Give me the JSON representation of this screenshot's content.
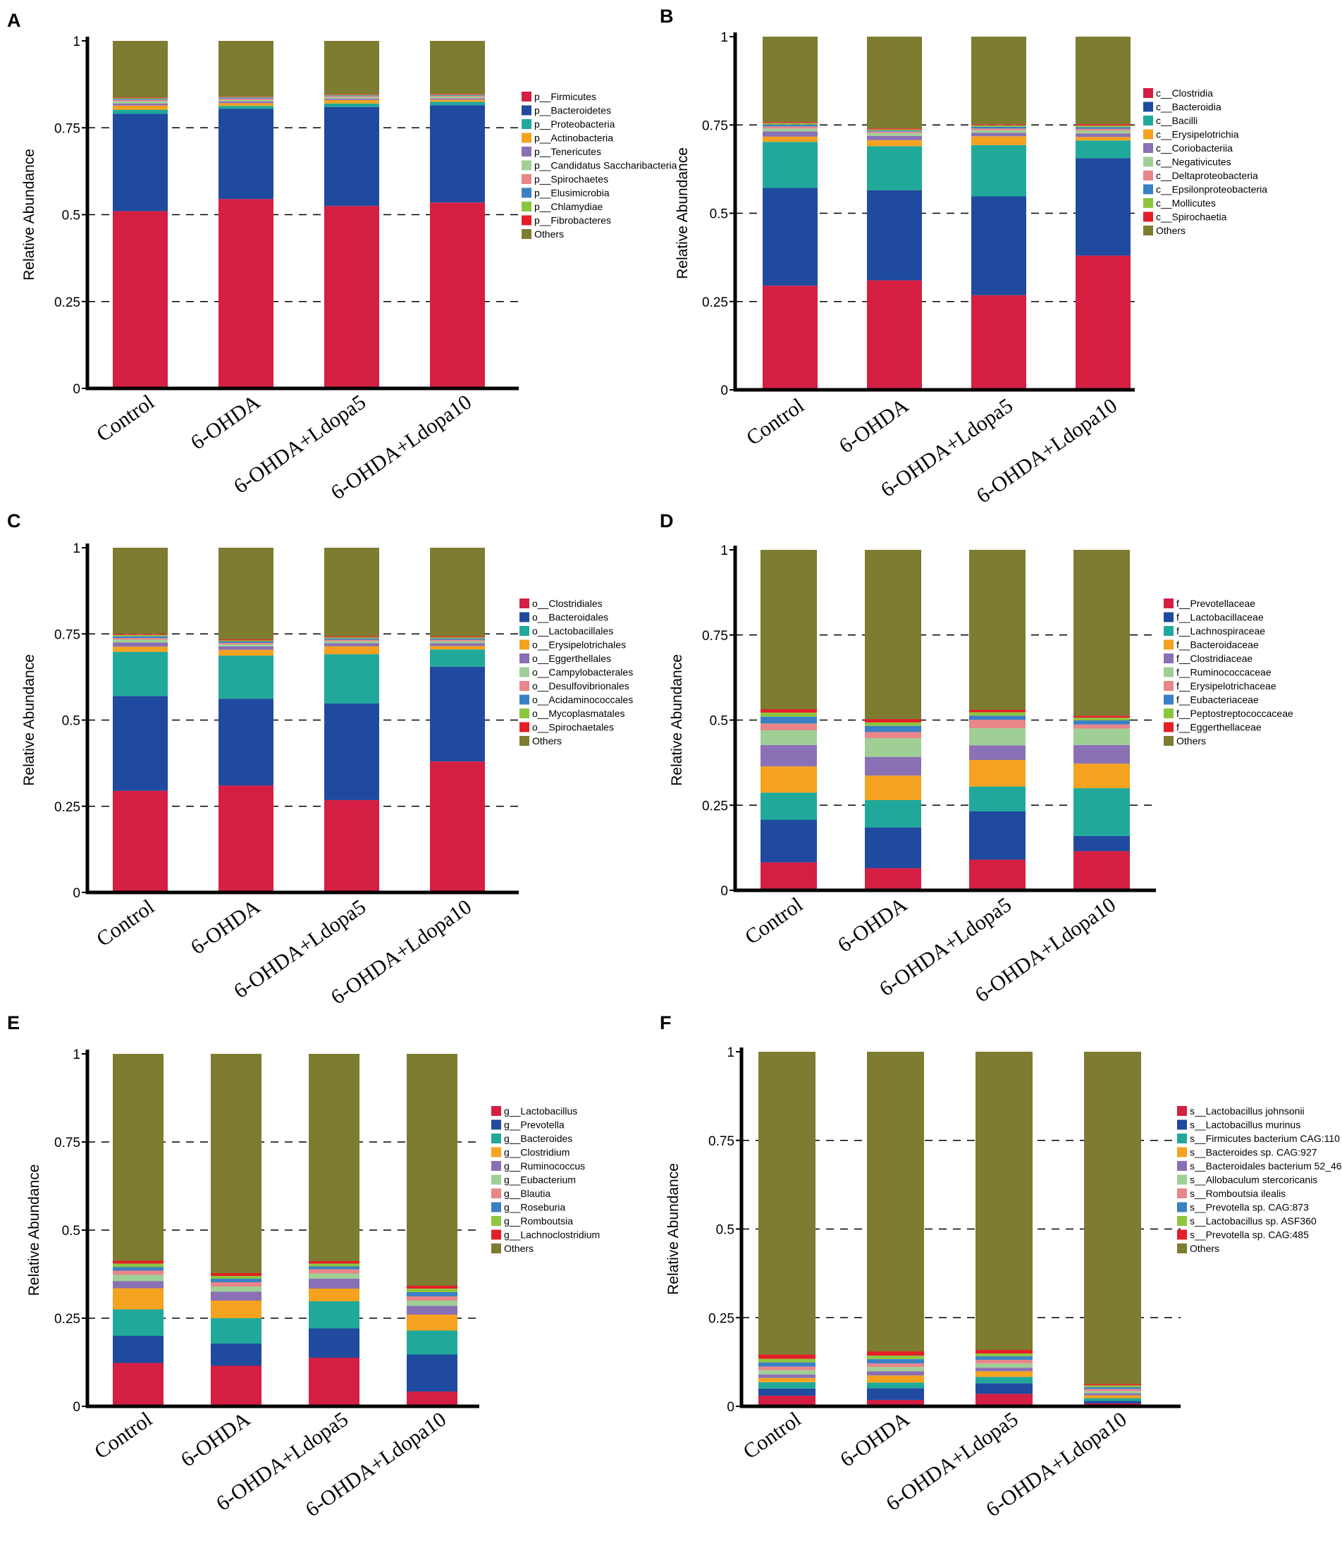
{
  "colors": {
    "palette": [
      "#d41f43",
      "#1f4a9f",
      "#20a99a",
      "#f4a21f",
      "#8a70b4",
      "#9fcf95",
      "#e8868a",
      "#3a80c4",
      "#8cc63f",
      "#e41e26",
      "#7d7c30"
    ],
    "axis": "#000000",
    "gridline": "#000000"
  },
  "chart_data": [
    {
      "type": "bar",
      "panel": "A",
      "ylabel": "Relative Abundance",
      "yticks": [
        "0",
        "0.25",
        "0.5",
        "0.75",
        "1"
      ],
      "ylim": [
        0,
        1
      ],
      "categories": [
        "Control",
        "6-OHDA",
        "6-OHDA+Ldopa5",
        "6-OHDA+Ldopa10"
      ],
      "series": [
        {
          "name": "p__Firmicutes",
          "values": [
            0.51,
            0.545,
            0.525,
            0.535
          ]
        },
        {
          "name": "p__Bacteroidetes",
          "values": [
            0.28,
            0.26,
            0.285,
            0.28
          ]
        },
        {
          "name": "p__Proteobacteria",
          "values": [
            0.012,
            0.008,
            0.01,
            0.01
          ]
        },
        {
          "name": "p__Actinobacteria",
          "values": [
            0.012,
            0.008,
            0.01,
            0.006
          ]
        },
        {
          "name": "p__Tenericutes",
          "values": [
            0.006,
            0.005,
            0.004,
            0.004
          ]
        },
        {
          "name": "p__Candidatus Saccharibacteria",
          "values": [
            0.006,
            0.004,
            0.004,
            0.004
          ]
        },
        {
          "name": "p__Spirochaetes",
          "values": [
            0.004,
            0.004,
            0.003,
            0.003
          ]
        },
        {
          "name": "p__Elusimicrobia",
          "values": [
            0.003,
            0.003,
            0.002,
            0.002
          ]
        },
        {
          "name": "p__Chlamydiae",
          "values": [
            0.002,
            0.002,
            0.002,
            0.002
          ]
        },
        {
          "name": "p__Fibrobacteres",
          "values": [
            0.002,
            0.002,
            0.002,
            0.002
          ]
        },
        {
          "name": "Others",
          "values": [
            0.163,
            0.159,
            0.153,
            0.152
          ]
        }
      ]
    },
    {
      "type": "bar",
      "panel": "B",
      "ylabel": "Relative Abundance",
      "yticks": [
        "0",
        "0.25",
        "0.5",
        "0.75",
        "1"
      ],
      "ylim": [
        0,
        1
      ],
      "categories": [
        "Control",
        "6-OHDA",
        "6-OHDA+Ldopa5",
        "6-OHDA+Ldopa10"
      ],
      "series": [
        {
          "name": "c__Clostridia",
          "values": [
            0.295,
            0.31,
            0.268,
            0.38
          ]
        },
        {
          "name": "c__Bacteroidia",
          "values": [
            0.277,
            0.255,
            0.28,
            0.276
          ]
        },
        {
          "name": "c__Bacilli",
          "values": [
            0.13,
            0.125,
            0.145,
            0.05
          ]
        },
        {
          "name": "c__Erysipelotrichia",
          "values": [
            0.015,
            0.017,
            0.025,
            0.01
          ]
        },
        {
          "name": "c__Coriobacteriia",
          "values": [
            0.015,
            0.012,
            0.01,
            0.01
          ]
        },
        {
          "name": "c__Negativicutes",
          "values": [
            0.008,
            0.008,
            0.007,
            0.008
          ]
        },
        {
          "name": "c__Deltaproteobacteria",
          "values": [
            0.006,
            0.004,
            0.005,
            0.005
          ]
        },
        {
          "name": "c__Epsilonproteobacteria",
          "values": [
            0.005,
            0.003,
            0.005,
            0.005
          ]
        },
        {
          "name": "c__Mollicutes",
          "values": [
            0.004,
            0.003,
            0.004,
            0.004
          ]
        },
        {
          "name": "c__Spirochaetia",
          "values": [
            0.003,
            0.003,
            0.003,
            0.004
          ]
        },
        {
          "name": "Others",
          "values": [
            0.242,
            0.26,
            0.248,
            0.248
          ]
        }
      ]
    },
    {
      "type": "bar",
      "panel": "C",
      "ylabel": "Relative Abundance",
      "yticks": [
        "0",
        "0.25",
        "0.5",
        "0.75",
        "1"
      ],
      "ylim": [
        0,
        1
      ],
      "categories": [
        "Control",
        "6-OHDA",
        "6-OHDA+Ldopa5",
        "6-OHDA+Ldopa10"
      ],
      "series": [
        {
          "name": "o__Clostridiales",
          "values": [
            0.295,
            0.31,
            0.268,
            0.38
          ]
        },
        {
          "name": "o__Bacteroidales",
          "values": [
            0.275,
            0.252,
            0.28,
            0.275
          ]
        },
        {
          "name": "o__Lactobacillales",
          "values": [
            0.128,
            0.125,
            0.143,
            0.05
          ]
        },
        {
          "name": "o__Erysipelotrichales",
          "values": [
            0.015,
            0.017,
            0.023,
            0.01
          ]
        },
        {
          "name": "o__Eggerthellales",
          "values": [
            0.012,
            0.01,
            0.009,
            0.008
          ]
        },
        {
          "name": "o__Campylobacterales",
          "values": [
            0.008,
            0.006,
            0.006,
            0.006
          ]
        },
        {
          "name": "o__Desulfovibrionales",
          "values": [
            0.005,
            0.004,
            0.004,
            0.004
          ]
        },
        {
          "name": "o__Acidaminococcales",
          "values": [
            0.005,
            0.004,
            0.004,
            0.004
          ]
        },
        {
          "name": "o__Mycoplasmatales",
          "values": [
            0.004,
            0.003,
            0.003,
            0.003
          ]
        },
        {
          "name": "o__Spirochaetales",
          "values": [
            0.003,
            0.003,
            0.003,
            0.003
          ]
        },
        {
          "name": "Others",
          "values": [
            0.25,
            0.266,
            0.257,
            0.257
          ]
        }
      ]
    },
    {
      "type": "bar",
      "panel": "D",
      "ylabel": "Relative Abundance",
      "yticks": [
        "0",
        "0.25",
        "0.5",
        "0.75",
        "1"
      ],
      "ylim": [
        0,
        1
      ],
      "categories": [
        "Control",
        "6-OHDA",
        "6-OHDA+Ldopa5",
        "6-OHDA+Ldopa10"
      ],
      "series": [
        {
          "name": "f__Prevotellaceae",
          "values": [
            0.082,
            0.065,
            0.09,
            0.115
          ]
        },
        {
          "name": "f__Lactobacillaceae",
          "values": [
            0.125,
            0.12,
            0.142,
            0.045
          ]
        },
        {
          "name": "f__Lachnospiraceae",
          "values": [
            0.08,
            0.08,
            0.073,
            0.14
          ]
        },
        {
          "name": "f__Bacteroidaceae",
          "values": [
            0.077,
            0.072,
            0.078,
            0.072
          ]
        },
        {
          "name": "f__Clostridiaceae",
          "values": [
            0.063,
            0.055,
            0.043,
            0.055
          ]
        },
        {
          "name": "f__Ruminococcaceae",
          "values": [
            0.043,
            0.055,
            0.05,
            0.048
          ]
        },
        {
          "name": "f__Erysipelotrichaceae",
          "values": [
            0.02,
            0.018,
            0.025,
            0.012
          ]
        },
        {
          "name": "f__Eubacteriaceae",
          "values": [
            0.02,
            0.018,
            0.012,
            0.012
          ]
        },
        {
          "name": "f__Peptostreptococcaceae",
          "values": [
            0.012,
            0.01,
            0.01,
            0.008
          ]
        },
        {
          "name": "f__Eggerthellaceae",
          "values": [
            0.01,
            0.01,
            0.007,
            0.006
          ]
        },
        {
          "name": "Others",
          "values": [
            0.468,
            0.497,
            0.47,
            0.487
          ]
        }
      ]
    },
    {
      "type": "bar",
      "panel": "E",
      "ylabel": "Relative Abundance",
      "yticks": [
        "0",
        "0.25",
        "0.5",
        "0.75",
        "1"
      ],
      "ylim": [
        0,
        1
      ],
      "categories": [
        "Control",
        "6-OHDA",
        "6-OHDA+Ldopa5",
        "6-OHDA+Ldopa10"
      ],
      "series": [
        {
          "name": "g__Lactobacillus",
          "values": [
            0.123,
            0.115,
            0.138,
            0.042
          ]
        },
        {
          "name": "g__Prevotella",
          "values": [
            0.077,
            0.063,
            0.083,
            0.105
          ]
        },
        {
          "name": "g__Bacteroides",
          "values": [
            0.075,
            0.072,
            0.077,
            0.068
          ]
        },
        {
          "name": "g__Clostridium",
          "values": [
            0.06,
            0.05,
            0.036,
            0.045
          ]
        },
        {
          "name": "g__Ruminococcus",
          "values": [
            0.02,
            0.025,
            0.028,
            0.025
          ]
        },
        {
          "name": "g__Eubacterium",
          "values": [
            0.018,
            0.015,
            0.015,
            0.015
          ]
        },
        {
          "name": "g__Blautia",
          "values": [
            0.012,
            0.012,
            0.012,
            0.012
          ]
        },
        {
          "name": "g__Roseburia",
          "values": [
            0.01,
            0.01,
            0.008,
            0.012
          ]
        },
        {
          "name": "g__Romboutsia",
          "values": [
            0.01,
            0.008,
            0.008,
            0.01
          ]
        },
        {
          "name": "g__Lachnoclostridium",
          "values": [
            0.008,
            0.008,
            0.007,
            0.008
          ]
        },
        {
          "name": "Others",
          "values": [
            0.587,
            0.622,
            0.588,
            0.658
          ]
        }
      ]
    },
    {
      "type": "bar",
      "panel": "F",
      "ylabel": "Relative Abundance",
      "yticks": [
        "0",
        "0.25",
        "0.5",
        "0.75",
        "1"
      ],
      "ylim": [
        0,
        1
      ],
      "categories": [
        "Control",
        "6-OHDA",
        "6-OHDA+Ldopa5",
        "6-OHDA+Ldopa10"
      ],
      "series": [
        {
          "name": "s__Lactobacillus johnsonii",
          "values": [
            0.03,
            0.018,
            0.035,
            0.008
          ]
        },
        {
          "name": "s__Lactobacillus murinus",
          "values": [
            0.02,
            0.033,
            0.03,
            0.007
          ]
        },
        {
          "name": "s__Firmicutes bacterium CAG:110",
          "values": [
            0.018,
            0.016,
            0.018,
            0.008
          ]
        },
        {
          "name": "s__Bacteroides sp. CAG:927",
          "values": [
            0.012,
            0.02,
            0.016,
            0.008
          ]
        },
        {
          "name": "s__Bacteroidales bacterium 52_46",
          "values": [
            0.01,
            0.012,
            0.01,
            0.006
          ]
        },
        {
          "name": "s__Allobaculum stercoricanis",
          "values": [
            0.012,
            0.012,
            0.012,
            0.006
          ]
        },
        {
          "name": "s__Romboutsia ilealis",
          "values": [
            0.01,
            0.01,
            0.01,
            0.006
          ]
        },
        {
          "name": "s__Prevotella sp. CAG:873",
          "values": [
            0.012,
            0.012,
            0.01,
            0.005
          ]
        },
        {
          "name": "s__Lactobacillus sp. ASF360",
          "values": [
            0.01,
            0.01,
            0.008,
            0.005
          ]
        },
        {
          "name": "s__Prevotella sp. CAG:485",
          "values": [
            0.012,
            0.012,
            0.01,
            0.004
          ]
        },
        {
          "name": "Others",
          "values": [
            0.854,
            0.845,
            0.841,
            0.937
          ]
        }
      ]
    }
  ]
}
